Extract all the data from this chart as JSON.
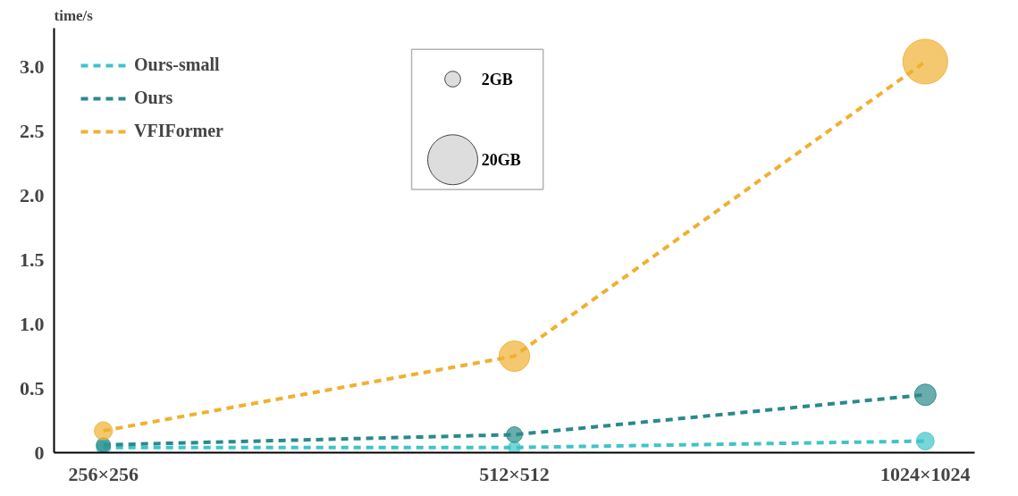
{
  "chart_data": {
    "type": "bubble",
    "ylabel": "time/s",
    "categories": [
      "256×256",
      "512×512",
      "1024×1024"
    ],
    "series": [
      {
        "type": "line",
        "name": "Ours-small",
        "color": "#40c4c8",
        "values": [
          0.04,
          0.04,
          0.09
        ]
      },
      {
        "type": "line",
        "name": "Ours",
        "color": "#2a8a8a",
        "values": [
          0.06,
          0.14,
          0.45
        ]
      },
      {
        "type": "line",
        "name": "VFIFormer",
        "color": "#f0b030",
        "values": [
          0.17,
          0.75,
          3.04
        ]
      },
      {
        "marker": "circle",
        "color": "#40c4c8",
        "values": [
          0.04,
          0.04,
          0.09
        ],
        "sizes": [
          1.6,
          1.2,
          2.5
        ]
      },
      {
        "marker": "circle",
        "color": "#2a8a8a",
        "values": [
          0.06,
          0.14,
          0.45
        ],
        "sizes": [
          1.6,
          2,
          3.7
        ]
      },
      {
        "marker": "circle",
        "color": "#f0b030",
        "values": [
          0.17,
          0.75,
          3.04
        ],
        "sizes": [
          2.6,
          7.4,
          16
        ]
      }
    ],
    "ylim": [
      0,
      3.3
    ],
    "yticks": [
      0,
      0.5,
      {
        "value": 1,
        "label": "1.0"
      },
      1.5,
      {
        "value": 2,
        "label": "2.0"
      },
      2.5,
      {
        "value": 3,
        "label": "3.0"
      }
    ],
    "size_legend": [
      {
        "value": 2,
        "label": "2GB"
      },
      {
        "value": 20,
        "label": "20GB"
      }
    ],
    "line_style": "dashed",
    "legend": "top left",
    "grid": false
  }
}
